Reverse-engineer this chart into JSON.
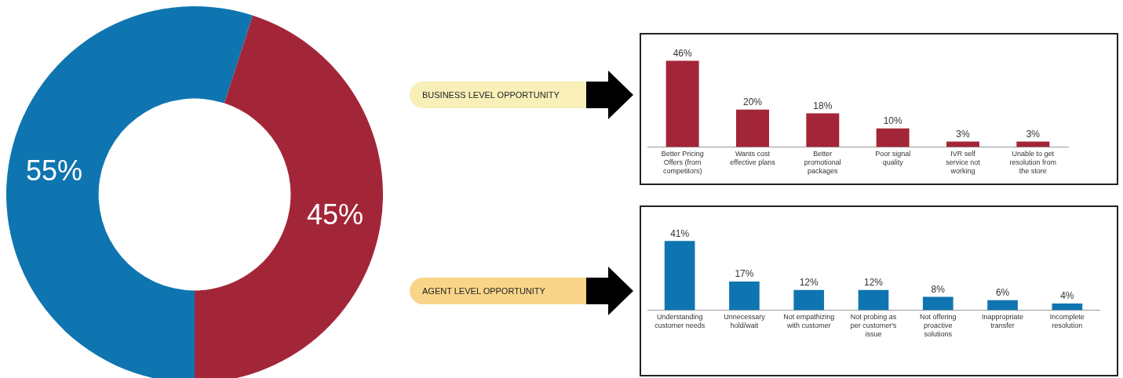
{
  "chart_data": [
    {
      "type": "donut",
      "categories": [
        null,
        null
      ],
      "values": [
        55,
        45
      ],
      "colors": [
        "#0f75b0",
        "#a32638"
      ],
      "value_labels": [
        "55%",
        "45%"
      ],
      "annotations": [
        "BUSINESS LEVEL OPPORTUNITY",
        "AGENT LEVEL OPPORTUNITY"
      ],
      "legend": false
    },
    {
      "type": "bar",
      "categories": [
        "Better Pricing Offers (from competitors)",
        "Wants cost effective plans",
        "Better promotional packages",
        "Poor signal quality",
        "IVR self service not working",
        "Unable to get resolution from the store"
      ],
      "values": [
        46,
        20,
        18,
        10,
        3,
        3
      ],
      "color": "#a32638",
      "value_labels": [
        "46%",
        "20%",
        "18%",
        "10%",
        "3%",
        "3%"
      ],
      "grid": false,
      "legend": false
    },
    {
      "type": "bar",
      "categories": [
        "Understanding customer needs",
        "Unnecessary hold/wait",
        "Not empathizing with customer",
        "Not probing as per customer's issue",
        "Not offering proactive solutions",
        "Inappropriate transfer",
        "Incomplete resolution"
      ],
      "values": [
        41,
        17,
        12,
        12,
        8,
        6,
        4
      ],
      "color": "#0f75b0",
      "value_labels": [
        "41%",
        "17%",
        "12%",
        "12%",
        "8%",
        "6%",
        "4%"
      ],
      "grid": false,
      "legend": false
    }
  ]
}
